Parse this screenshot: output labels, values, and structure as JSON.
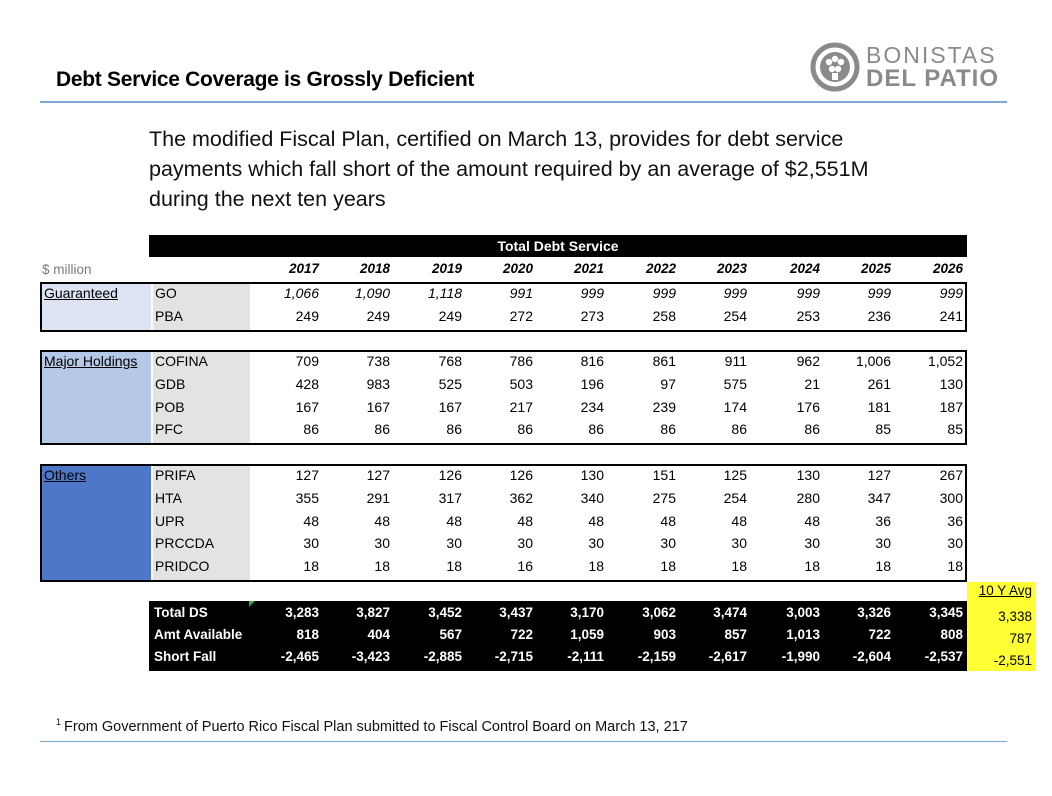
{
  "slide": {
    "title": "Debt Service Coverage is Grossly Deficient",
    "intro": "The modified Fiscal Plan, certified on March 13, provides for debt service payments which fall short of the amount required by an average of $2,551M during the next ten years",
    "footnote_marker": "1",
    "footnote": "From Government of Puerto Rico Fiscal Plan submitted to Fiscal Control Board on March 13, 217"
  },
  "logo": {
    "line1": "BONISTAS",
    "line2": "DEL PATIO",
    "icon": "bonistas-logo-icon"
  },
  "table": {
    "units": "$ million",
    "header": "Total Debt Service",
    "years": [
      "2017",
      "2018",
      "2019",
      "2020",
      "2021",
      "2022",
      "2023",
      "2024",
      "2025",
      "2026"
    ],
    "groups": [
      {
        "label": "Guaranteed",
        "color": "#dce3f3",
        "rows": [
          {
            "name": "GO",
            "values": [
              "1,066",
              "1,090",
              "1,118",
              "991",
              "999",
              "999",
              "999",
              "999",
              "999",
              "999"
            ]
          },
          {
            "name": "PBA",
            "values": [
              "249",
              "249",
              "249",
              "272",
              "273",
              "258",
              "254",
              "253",
              "236",
              "241"
            ]
          }
        ]
      },
      {
        "label": "Major Holdings",
        "color": "#b6c8e8",
        "rows": [
          {
            "name": "COFINA",
            "values": [
              "709",
              "738",
              "768",
              "786",
              "816",
              "861",
              "911",
              "962",
              "1,006",
              "1,052"
            ]
          },
          {
            "name": "GDB",
            "values": [
              "428",
              "983",
              "525",
              "503",
              "196",
              "97",
              "575",
              "21",
              "261",
              "130"
            ]
          },
          {
            "name": "POB",
            "values": [
              "167",
              "167",
              "167",
              "217",
              "234",
              "239",
              "174",
              "176",
              "181",
              "187"
            ]
          },
          {
            "name": "PFC",
            "values": [
              "86",
              "86",
              "86",
              "86",
              "86",
              "86",
              "86",
              "86",
              "85",
              "85"
            ]
          }
        ]
      },
      {
        "label": "Others",
        "color": "#4f77c9",
        "rows": [
          {
            "name": "PRIFA",
            "values": [
              "127",
              "127",
              "126",
              "126",
              "130",
              "151",
              "125",
              "130",
              "127",
              "267"
            ]
          },
          {
            "name": "HTA",
            "values": [
              "355",
              "291",
              "317",
              "362",
              "340",
              "275",
              "254",
              "280",
              "347",
              "300"
            ]
          },
          {
            "name": "UPR",
            "values": [
              "48",
              "48",
              "48",
              "48",
              "48",
              "48",
              "48",
              "48",
              "36",
              "36"
            ]
          },
          {
            "name": "PRCCDA",
            "values": [
              "30",
              "30",
              "30",
              "30",
              "30",
              "30",
              "30",
              "30",
              "30",
              "30"
            ]
          },
          {
            "name": "PRIDCO",
            "values": [
              "18",
              "18",
              "18",
              "16",
              "18",
              "18",
              "18",
              "18",
              "18",
              "18"
            ]
          }
        ]
      }
    ],
    "totals": [
      {
        "name": "Total DS",
        "values": [
          "3,283",
          "3,827",
          "3,452",
          "3,437",
          "3,170",
          "3,062",
          "3,474",
          "3,003",
          "3,326",
          "3,345"
        ],
        "avg": "3,338"
      },
      {
        "name": "Amt Available",
        "values": [
          "818",
          "404",
          "567",
          "722",
          "1,059",
          "903",
          "857",
          "1,013",
          "722",
          "808"
        ],
        "avg": "787"
      },
      {
        "name": "Short Fall",
        "values": [
          "-2,465",
          "-3,423",
          "-2,885",
          "-2,715",
          "-2,111",
          "-2,159",
          "-2,617",
          "-1,990",
          "-2,604",
          "-2,537"
        ],
        "avg": "-2,551"
      }
    ],
    "avg_header": "10 Y Avg"
  }
}
